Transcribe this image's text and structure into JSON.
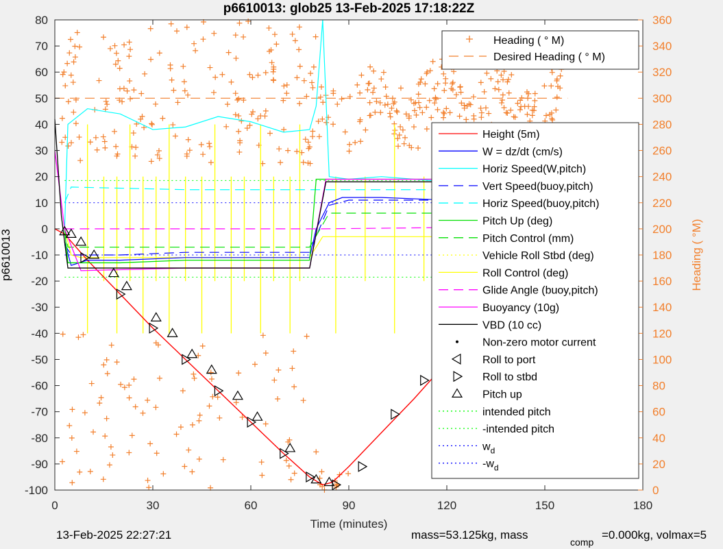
{
  "chart_data": {
    "type": "line",
    "title": "p6610013: glob25 13-Feb-2025 17:18:22Z",
    "xlabel": "Time (minutes)",
    "ylabel": "p6610013",
    "y2label": "Heading (  °M)",
    "xlim": [
      0,
      180
    ],
    "ylim": [
      -100,
      80
    ],
    "y2lim": [
      0,
      360
    ],
    "xticks": [
      "0",
      "30",
      "60",
      "90",
      "120",
      "150",
      "180"
    ],
    "yticks": [
      "80",
      "70",
      "60",
      "50",
      "40",
      "30",
      "20",
      "10",
      "0",
      "-10",
      "-20",
      "-30",
      "-40",
      "-50",
      "-60",
      "-70",
      "-80",
      "-90",
      "-100"
    ],
    "y2ticks": [
      "360",
      "340",
      "320",
      "300",
      "280",
      "260",
      "240",
      "220",
      "200",
      "180",
      "160",
      "140",
      "120",
      "100",
      "80",
      "60",
      "40",
      "20",
      "0"
    ],
    "grid": false,
    "legend_top": [
      "Heading (  ° M)",
      "Desired Heading (    ° M)"
    ],
    "legend_main": [
      "Height (5m)",
      "W = dz/dt (cm/s)",
      "Horiz Speed(W,pitch)",
      "Vert Speed(buoy,pitch)",
      "Horiz Speed(buoy,pitch)",
      "Pitch Up (deg)",
      "Pitch Control (mm)",
      "Vehicle Roll Stbd (deg)",
      "Roll Control (deg)",
      "Glide Angle (buoy,pitch)",
      "Buoyancy (10g)",
      "VBD (10 cc)",
      "Non-zero motor current",
      "Roll to port",
      "Roll to stbd",
      "Pitch up",
      "intended pitch",
      "-intended pitch",
      "w",
      "-w"
    ],
    "legend_sub": "d",
    "colors": {
      "height": "#ff0000",
      "w": "#0000ff",
      "hspeed": "#00ffff",
      "pitch": "#00e000",
      "roll": "#ffff00",
      "glide": "#ff00ff",
      "buoy": "#ff00ff",
      "vbd": "#000000",
      "heading": "#f27f2b",
      "intended": "#00ff00",
      "wd": "#0000ff"
    },
    "series": [
      {
        "name": "Height (5m)",
        "x": [
          0,
          3,
          10,
          20,
          30,
          40,
          50,
          60,
          70,
          78,
          82,
          85,
          90,
          100,
          110,
          120,
          130,
          140,
          150,
          157
        ],
        "y": [
          0,
          -2,
          -12,
          -25,
          -38,
          -50,
          -62,
          -74,
          -86,
          -95,
          -98,
          -97,
          -91,
          -78,
          -65,
          -51,
          -38,
          -25,
          -12,
          -2
        ]
      },
      {
        "name": "W = dz/dt (cm/s)",
        "x": [
          3,
          5,
          10,
          20,
          40,
          60,
          78,
          80,
          84,
          88,
          100,
          120,
          140,
          157
        ],
        "y": [
          -5,
          -14,
          -12,
          -12,
          -11,
          -11,
          -11,
          0,
          10,
          12,
          12,
          11,
          11,
          11
        ]
      },
      {
        "name": "Horiz Speed(W,pitch)",
        "x": [
          3,
          4,
          10,
          20,
          30,
          40,
          50,
          60,
          70,
          78,
          80,
          82,
          84,
          90,
          100,
          120,
          140,
          157
        ],
        "y": [
          0,
          40,
          46,
          44,
          38,
          39,
          43,
          41,
          37,
          38,
          47,
          80,
          20,
          19,
          20,
          18,
          18,
          20
        ]
      },
      {
        "name": "Vert Speed(buoy,pitch)",
        "x": [
          3,
          5,
          20,
          40,
          60,
          78,
          84,
          90,
          120,
          157
        ],
        "y": [
          -6,
          -10,
          -10,
          -9,
          -9,
          -9,
          9,
          11,
          11,
          11
        ]
      },
      {
        "name": "Horiz Speed(buoy,pitch)",
        "x": [
          3,
          5,
          40,
          78,
          157
        ],
        "y": [
          10,
          16,
          15,
          15,
          15
        ]
      },
      {
        "name": "Pitch Up (deg)",
        "x": [
          3,
          4,
          20,
          40,
          60,
          78,
          80,
          84,
          120,
          157
        ],
        "y": [
          0,
          -13,
          -13,
          -12,
          -12,
          -12,
          19,
          19,
          19,
          19
        ]
      },
      {
        "name": "Pitch Control (mm)",
        "x": [
          3,
          4,
          78,
          84,
          157
        ],
        "y": [
          0,
          -7,
          -7,
          6,
          6
        ]
      },
      {
        "name": "Glide Angle (buoy,pitch)",
        "x": [
          3,
          78,
          82,
          157
        ],
        "y": [
          0,
          0,
          0,
          1
        ]
      },
      {
        "name": "Buoyancy (10g)",
        "x": [
          0,
          3,
          8,
          40,
          78,
          83,
          157
        ],
        "y": [
          30,
          0,
          -16,
          -15,
          -15,
          19,
          19
        ]
      },
      {
        "name": "VBD (10 cc)",
        "x": [
          0,
          2,
          4,
          10,
          78,
          83,
          130,
          157
        ],
        "y": [
          42,
          5,
          -15,
          -15,
          -15,
          18,
          18,
          18
        ]
      },
      {
        "name": "Roll to port",
        "x": [
          118,
          121,
          126,
          130,
          135,
          137,
          140,
          143,
          146,
          148,
          152,
          155
        ],
        "y": [
          -52,
          -48,
          -44,
          -39,
          -33,
          -30,
          -27,
          -23,
          -18,
          -15,
          -9,
          -5
        ]
      },
      {
        "name": "Roll to stbd",
        "x": [
          9,
          20,
          30,
          40,
          50,
          60,
          70,
          78,
          86,
          94,
          104,
          113
        ],
        "y": [
          -11,
          -25,
          -38,
          -50,
          -62,
          -74,
          -86,
          -95,
          -98,
          -91,
          -71,
          -58
        ]
      },
      {
        "name": "Pitch up",
        "x": [
          3,
          5,
          8,
          12,
          18,
          22,
          31,
          36,
          42,
          48,
          56,
          62,
          72,
          80,
          84
        ],
        "y": [
          -1,
          -2,
          -5,
          -10,
          -17,
          -22,
          -34,
          -40,
          -48,
          -54,
          -64,
          -72,
          -84,
          -96,
          -97
        ]
      }
    ],
    "reference_lines": {
      "intended_pitch": 18.5,
      "wd": 10
    },
    "desired_heading": 300,
    "footer_left": "13-Feb-2025 22:27:21",
    "footer_right_1": "mass=53.125kg, mass",
    "footer_right_sub": "comp",
    "footer_right_2": "=0.000kg, volmax=5"
  }
}
